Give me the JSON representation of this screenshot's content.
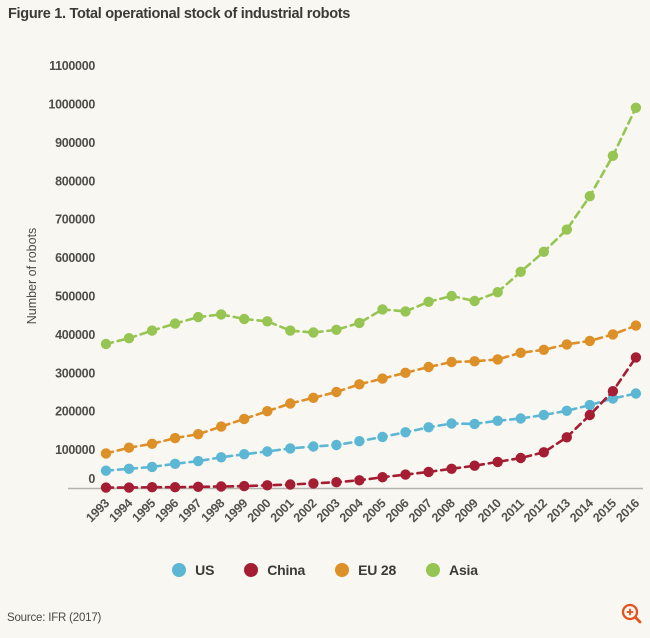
{
  "figure": {
    "title": "Figure 1. Total operational stock of industrial robots",
    "source": "Source: IFR (2017)",
    "background_color": "#f8f7f1",
    "axis_line_color": "#b3b2ab",
    "zoom_icon_color": "#e5521f"
  },
  "chart_data": {
    "type": "line",
    "style": "dashed-lines-with-circle-markers",
    "grid": false,
    "legend_position": "bottom",
    "ylabel": "Number of robots",
    "xlabel": "",
    "ylim": [
      0,
      1100000
    ],
    "ytick_step": 100000,
    "x": [
      1993,
      1994,
      1995,
      1996,
      1997,
      1998,
      1999,
      2000,
      2001,
      2002,
      2003,
      2004,
      2005,
      2006,
      2007,
      2008,
      2009,
      2010,
      2011,
      2012,
      2013,
      2014,
      2015,
      2016
    ],
    "series": [
      {
        "name": "US",
        "color": "#5cb7d4",
        "values": [
          45000,
          50000,
          55000,
          63000,
          70000,
          80000,
          88000,
          95000,
          103000,
          108000,
          112000,
          122000,
          133000,
          145000,
          158000,
          168000,
          167000,
          175000,
          181000,
          190000,
          201000,
          216000,
          233000,
          246000
        ]
      },
      {
        "name": "China",
        "color": "#a41d32",
        "values": [
          1000,
          1000,
          2000,
          2000,
          3000,
          4000,
          5000,
          7000,
          9000,
          12000,
          15000,
          20000,
          28000,
          35000,
          42000,
          50000,
          58000,
          68000,
          78000,
          93000,
          132000,
          190000,
          252000,
          340000
        ]
      },
      {
        "name": "EU 28",
        "color": "#dd8f28",
        "values": [
          90000,
          105000,
          115000,
          130000,
          140000,
          160000,
          180000,
          200000,
          220000,
          235000,
          250000,
          270000,
          285000,
          300000,
          315000,
          328000,
          330000,
          335000,
          352000,
          360000,
          374000,
          383000,
          400000,
          423000
        ]
      },
      {
        "name": "Asia",
        "color": "#97c553",
        "values": [
          375000,
          390000,
          410000,
          428000,
          445000,
          452000,
          440000,
          434000,
          410000,
          405000,
          412000,
          430000,
          465000,
          460000,
          485000,
          500000,
          487000,
          510000,
          563000,
          615000,
          673000,
          760000,
          865000,
          990000
        ]
      }
    ]
  }
}
